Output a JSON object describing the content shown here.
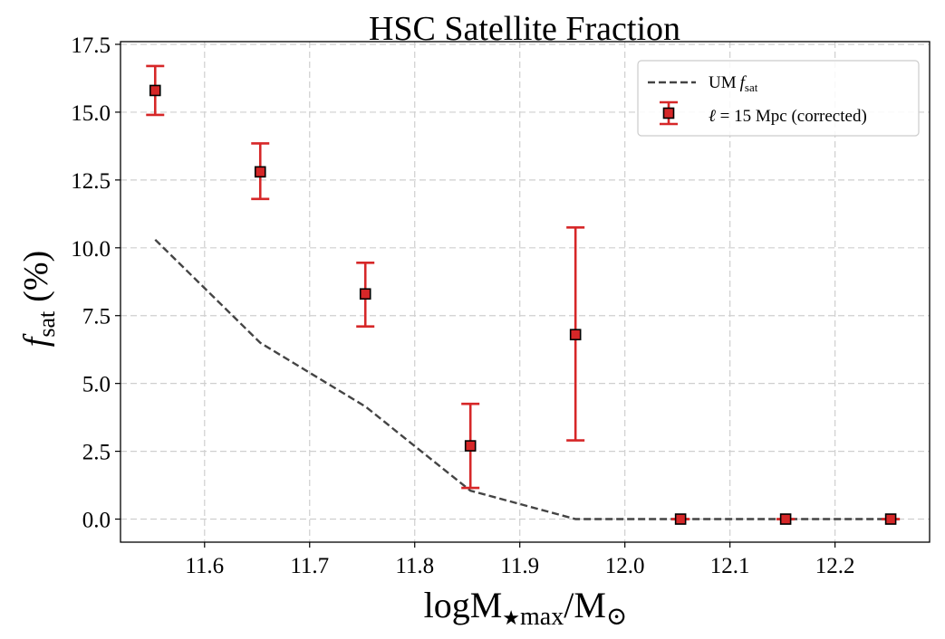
{
  "chart_data": {
    "type": "scatter",
    "title": "HSC Satellite Fraction",
    "xlabel": {
      "base": "logM",
      "star": "★",
      "sub": "max",
      "tail": "/M",
      "sun": "⊙"
    },
    "ylabel": {
      "f": "f",
      "sub": "sat",
      "unit": "(%)"
    },
    "xlim": [
      11.52,
      12.29
    ],
    "ylim": [
      -0.85,
      17.6
    ],
    "x_ticks": [
      11.6,
      11.7,
      11.8,
      11.9,
      12.0,
      12.1,
      12.2
    ],
    "x_tick_labels": [
      "11.6",
      "11.7",
      "11.8",
      "11.9",
      "12.0",
      "12.1",
      "12.2"
    ],
    "y_ticks": [
      0,
      2.5,
      5,
      7.5,
      10,
      12.5,
      15,
      17.5
    ],
    "y_tick_labels": [
      "0.0",
      "2.5",
      "5.0",
      "7.5",
      "10.0",
      "12.5",
      "15.0",
      "17.5"
    ],
    "grid": true,
    "legend_position": "top-right",
    "series": [
      {
        "name": "UM f_sat",
        "kind": "line",
        "style": "dashed",
        "color": "#444444",
        "x": [
          11.553,
          11.653,
          11.753,
          11.853,
          11.953,
          12.053,
          12.153,
          12.253
        ],
        "values": [
          10.3,
          6.5,
          4.15,
          1.05,
          0.0,
          0.0,
          0.0,
          0.0
        ]
      },
      {
        "name": "ℓ = 15 Mpc (corrected)",
        "kind": "errorbar",
        "marker": "square",
        "color": "#d62728",
        "edge_color": "#000000",
        "x": [
          11.553,
          11.653,
          11.753,
          11.853,
          11.953,
          12.053,
          12.153,
          12.253
        ],
        "values": [
          15.8,
          12.8,
          8.3,
          2.7,
          6.8,
          0.0,
          0.0,
          0.0
        ],
        "err_low": [
          14.9,
          11.8,
          7.1,
          1.15,
          2.9,
          0.0,
          0.0,
          0.0
        ],
        "err_high": [
          16.7,
          13.85,
          9.45,
          4.25,
          10.75,
          0.0,
          0.0,
          0.0
        ]
      }
    ]
  },
  "legend": {
    "line_text": "UM",
    "line_f": "f",
    "line_sub": "sat",
    "errbar_ell": "ℓ",
    "errbar_text": " = 15 Mpc (corrected)"
  }
}
